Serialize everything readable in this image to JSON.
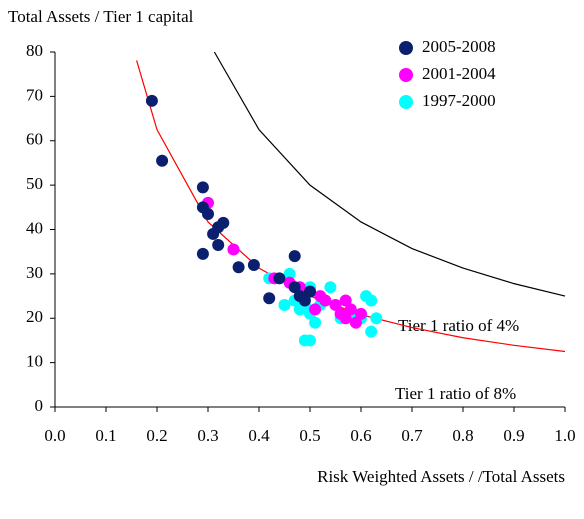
{
  "chart_data": {
    "type": "scatter",
    "y_title": "Total Assets / Tier 1 capital",
    "x_title": "Risk Weighted Assets / /Total Assets",
    "xlim": [
      0,
      1
    ],
    "ylim": [
      0,
      80
    ],
    "xticks": [
      {
        "value": 0,
        "label": "0.0"
      },
      0.1,
      0.2,
      0.3,
      0.4,
      0.5,
      0.6,
      0.7,
      0.8,
      0.9,
      {
        "value": 1,
        "label": "1.0"
      }
    ],
    "yticks": [
      0,
      10,
      20,
      30,
      40,
      50,
      60,
      70,
      80
    ],
    "legend": "top-right",
    "series": [
      {
        "name": "2005-2008",
        "color": "#0a1f6e",
        "x": [
          0.19,
          0.21,
          0.29,
          0.29,
          0.3,
          0.31,
          0.32,
          0.33,
          0.32,
          0.29,
          0.36,
          0.39,
          0.42,
          0.47,
          0.44,
          0.47,
          0.48,
          0.5,
          0.49
        ],
        "values": [
          69,
          55.5,
          49.5,
          45,
          43.5,
          39,
          40.5,
          41.5,
          36.5,
          34.5,
          31.5,
          32,
          24.5,
          34,
          29,
          27,
          25,
          26,
          24
        ]
      },
      {
        "name": "2001-2004",
        "color": "#ff00ff",
        "x": [
          0.3,
          0.35,
          0.43,
          0.46,
          0.48,
          0.5,
          0.51,
          0.52,
          0.53,
          0.55,
          0.56,
          0.57,
          0.58,
          0.57,
          0.59,
          0.6
        ],
        "values": [
          46,
          35.5,
          29,
          28,
          27,
          26,
          22,
          25,
          24,
          23,
          21,
          24,
          22,
          20,
          19,
          21
        ]
      },
      {
        "name": "1997-2000",
        "color": "#00ffff",
        "x": [
          0.42,
          0.46,
          0.47,
          0.48,
          0.49,
          0.5,
          0.5,
          0.51,
          0.5,
          0.49,
          0.52,
          0.54,
          0.56,
          0.58,
          0.6,
          0.61,
          0.62,
          0.62,
          0.63,
          0.48,
          0.45
        ],
        "values": [
          29,
          30,
          24,
          22,
          23,
          27,
          21,
          19,
          15,
          15,
          23,
          27,
          20,
          21,
          20,
          25,
          17,
          24,
          20,
          25,
          23
        ]
      }
    ],
    "lines": [
      {
        "label": "Tier 1 ratio of 4%",
        "color": "#000000",
        "x": [
          0.3125,
          0.4,
          0.5,
          0.6,
          0.7,
          0.8,
          0.9,
          1.0
        ],
        "values": [
          80,
          62.5,
          50,
          41.7,
          35.7,
          31.3,
          27.8,
          25
        ]
      },
      {
        "label": "Tier 1 ratio of 8%",
        "color": "#ff0000",
        "x": [
          0.16,
          0.2,
          0.3,
          0.4,
          0.5,
          0.6,
          0.7,
          0.8,
          0.9,
          1.0
        ],
        "values": [
          78.1,
          62.5,
          41.7,
          31.3,
          25,
          20.8,
          17.9,
          15.6,
          13.9,
          12.5
        ]
      }
    ]
  }
}
